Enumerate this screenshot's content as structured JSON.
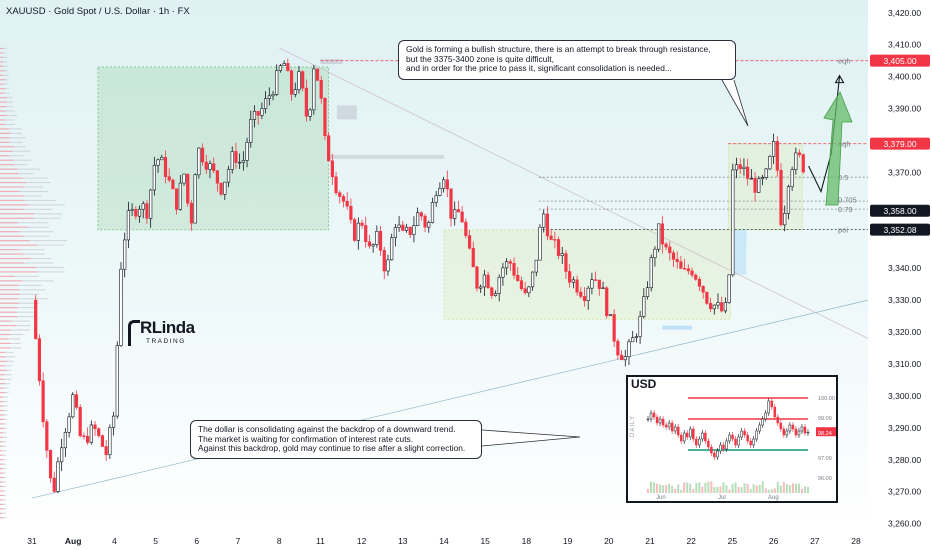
{
  "chart_data": {
    "type": "candlestick",
    "title": "XAUUSD · Gold Spot / U.S. Dollar · 1h · FX",
    "symbol": "XAUUSD",
    "timeframe": "1h",
    "ylim": [
      3258,
      3424
    ],
    "xlabel": "",
    "ylabel": "",
    "y_ticks": [
      "3,420.00",
      "3,410.00",
      "3,400.00",
      "3,390.00",
      "3,370.00",
      "3,340.00",
      "3,330.00",
      "3,320.00",
      "3,310.00",
      "3,300.00",
      "3,290.00",
      "3,280.00",
      "3,270.00",
      "3,260.00"
    ],
    "y_tick_values": [
      3420,
      3410,
      3400,
      3390,
      3370,
      3340,
      3330,
      3320,
      3310,
      3300,
      3290,
      3280,
      3270,
      3260
    ],
    "x_ticks": [
      {
        "label": "31",
        "day": 0
      },
      {
        "label": "Aug",
        "day": 1
      },
      {
        "label": "4",
        "day": 2
      },
      {
        "label": "5",
        "day": 3
      },
      {
        "label": "6",
        "day": 4
      },
      {
        "label": "7",
        "day": 5
      },
      {
        "label": "8",
        "day": 6
      },
      {
        "label": "11",
        "day": 7
      },
      {
        "label": "12",
        "day": 8
      },
      {
        "label": "13",
        "day": 9
      },
      {
        "label": "14",
        "day": 10
      },
      {
        "label": "15",
        "day": 11
      },
      {
        "label": "18",
        "day": 12
      },
      {
        "label": "19",
        "day": 13
      },
      {
        "label": "20",
        "day": 14
      },
      {
        "label": "21",
        "day": 15
      },
      {
        "label": "22",
        "day": 16
      },
      {
        "label": "25",
        "day": 17
      },
      {
        "label": "26",
        "day": 18
      },
      {
        "label": "27",
        "day": 19
      },
      {
        "label": "28",
        "day": 20
      }
    ],
    "price_path": [
      [
        0,
        3330
      ],
      [
        0.3,
        3290
      ],
      [
        0.5,
        3268
      ],
      [
        0.7,
        3285
      ],
      [
        1.0,
        3300
      ],
      [
        1.2,
        3285
      ],
      [
        1.5,
        3290
      ],
      [
        1.8,
        3282
      ],
      [
        2.0,
        3295
      ],
      [
        2.15,
        3340
      ],
      [
        2.3,
        3355
      ],
      [
        2.6,
        3360
      ],
      [
        2.8,
        3358
      ],
      [
        3.0,
        3375
      ],
      [
        3.2,
        3372
      ],
      [
        3.5,
        3360
      ],
      [
        3.7,
        3370
      ],
      [
        3.85,
        3352
      ],
      [
        4.0,
        3378
      ],
      [
        4.3,
        3372
      ],
      [
        4.6,
        3365
      ],
      [
        4.9,
        3376
      ],
      [
        5.1,
        3372
      ],
      [
        5.3,
        3385
      ],
      [
        5.6,
        3390
      ],
      [
        5.9,
        3398
      ],
      [
        6.1,
        3405
      ],
      [
        6.3,
        3395
      ],
      [
        6.5,
        3400
      ],
      [
        6.7,
        3385
      ],
      [
        6.85,
        3405
      ],
      [
        7.0,
        3395
      ],
      [
        7.1,
        3380
      ],
      [
        7.2,
        3375
      ],
      [
        7.4,
        3365
      ],
      [
        7.6,
        3360
      ],
      [
        7.8,
        3350
      ],
      [
        8.0,
        3355
      ],
      [
        8.2,
        3345
      ],
      [
        8.4,
        3350
      ],
      [
        8.6,
        3338
      ],
      [
        8.8,
        3355
      ],
      [
        9.0,
        3350
      ],
      [
        9.2,
        3352
      ],
      [
        9.4,
        3358
      ],
      [
        9.6,
        3352
      ],
      [
        9.8,
        3365
      ],
      [
        10.0,
        3370
      ],
      [
        10.2,
        3355
      ],
      [
        10.4,
        3358
      ],
      [
        10.6,
        3345
      ],
      [
        10.8,
        3335
      ],
      [
        11.0,
        3338
      ],
      [
        11.2,
        3332
      ],
      [
        11.4,
        3340
      ],
      [
        11.6,
        3342
      ],
      [
        11.8,
        3336
      ],
      [
        12.0,
        3330
      ],
      [
        12.2,
        3340
      ],
      [
        12.4,
        3358
      ],
      [
        12.6,
        3348
      ],
      [
        12.8,
        3345
      ],
      [
        13.0,
        3338
      ],
      [
        13.2,
        3335
      ],
      [
        13.4,
        3332
      ],
      [
        13.6,
        3338
      ],
      [
        13.8,
        3335
      ],
      [
        14.0,
        3325
      ],
      [
        14.2,
        3315
      ],
      [
        14.4,
        3312
      ],
      [
        14.6,
        3318
      ],
      [
        14.8,
        3325
      ],
      [
        15.0,
        3340
      ],
      [
        15.2,
        3352
      ],
      [
        15.4,
        3345
      ],
      [
        15.6,
        3342
      ],
      [
        15.8,
        3338
      ],
      [
        16.0,
        3340
      ],
      [
        16.2,
        3336
      ],
      [
        16.4,
        3330
      ],
      [
        16.6,
        3328
      ],
      [
        16.8,
        3326
      ],
      [
        16.9,
        3330
      ],
      [
        17.0,
        3370
      ],
      [
        17.2,
        3372
      ],
      [
        17.4,
        3368
      ],
      [
        17.6,
        3365
      ],
      [
        17.8,
        3368
      ],
      [
        18.0,
        3378
      ],
      [
        18.1,
        3370
      ],
      [
        18.2,
        3352
      ],
      [
        18.4,
        3372
      ],
      [
        18.6,
        3375
      ],
      [
        18.8,
        3370
      ]
    ],
    "projection": [
      [
        18.85,
        3372
      ],
      [
        19.15,
        3364
      ],
      [
        19.4,
        3376
      ],
      [
        19.6,
        3400
      ]
    ],
    "levels": [
      {
        "name": "eqh",
        "value": 3405.0,
        "label": "3,405.00",
        "color": "#f23645"
      },
      {
        "name": "eqh",
        "value": 3379.0,
        "label": "3,379.00",
        "color": "#f23645"
      },
      {
        "name": "0.5",
        "value": 3368.5
      },
      {
        "name": "0.705",
        "value": 3361.0
      },
      {
        "name": "0.79",
        "value": 3358.5
      },
      {
        "name": "poi",
        "value": 3352.08,
        "label": "3,352.08",
        "color": "#131722"
      }
    ],
    "price_badges": [
      {
        "label": "3,405.00",
        "value": 3405.0,
        "color": "#f23645"
      },
      {
        "label": "3,379.00",
        "value": 3379.0,
        "color": "#f23645"
      },
      {
        "label": "3,358.00",
        "value": 3358.0,
        "color": "#131722"
      },
      {
        "label": "3,352.08",
        "value": 3352.08,
        "color": "#131722"
      }
    ],
    "fib_labels": [
      "0.5",
      "0.705",
      "0.79",
      "poi",
      "eqh"
    ],
    "zones": [
      {
        "from_day": 1.6,
        "to_day": 7.2,
        "top": 3403,
        "bottom": 3352,
        "color": "#4caf50"
      },
      {
        "from_day": 10.0,
        "to_day": 16.95,
        "top": 3352,
        "bottom": 3324,
        "color": "#c9d86a"
      },
      {
        "from_day": 16.9,
        "to_day": 18.7,
        "top": 3379,
        "bottom": 3352,
        "color": "#c9d86a"
      }
    ],
    "grid": false,
    "legend": "none"
  },
  "annotations": {
    "gold_note": [
      "Gold is forming a bullish structure, there is an attempt to break through resistance,",
      "but the 3375-3400 zone is quite difficult,",
      "and in order for the price to pass it, significant consolidation is needed..."
    ],
    "usd_note": [
      "The dollar is consolidating against the backdrop of a downward trend.",
      "The market is waiting for confirmation of interest rate cuts.",
      "Against this backdrop, gold may continue to rise after a slight correction."
    ]
  },
  "logo": {
    "main": "RLinda",
    "sub": "TRADING"
  },
  "inset": {
    "title": "USD",
    "side_label": "DAILY",
    "y_ticks": [
      "100.00",
      "99.00",
      "98.24",
      "97.00",
      "96.00"
    ],
    "y_tick_values": [
      100,
      99,
      98.24,
      97,
      96
    ],
    "x_ticks": [
      "Jun",
      "Jul",
      "Aug"
    ],
    "last_value_label": "98.24",
    "ylim": [
      95.6,
      100.3
    ],
    "series": [
      98.9,
      99.2,
      99.0,
      98.7,
      98.9,
      98.6,
      98.5,
      98.7,
      98.3,
      98.5,
      98.1,
      97.8,
      98.2,
      98.0,
      98.4,
      97.9,
      97.6,
      97.9,
      98.2,
      97.8,
      97.5,
      97.2,
      97.0,
      97.3,
      97.6,
      97.4,
      97.8,
      98.1,
      97.9,
      97.6,
      98.0,
      98.3,
      98.1,
      97.8,
      97.6,
      97.9,
      98.3,
      98.6,
      98.9,
      99.2,
      99.8,
      99.5,
      99.0,
      98.7,
      98.4,
      98.1,
      98.3,
      98.6,
      98.4,
      98.1,
      98.3,
      98.5,
      98.2,
      98.24
    ],
    "levels": [
      {
        "value": 99.95,
        "color": "#f23645"
      },
      {
        "value": 98.9,
        "color": "#f23645"
      },
      {
        "value": 97.35,
        "color": "#089981"
      }
    ]
  }
}
